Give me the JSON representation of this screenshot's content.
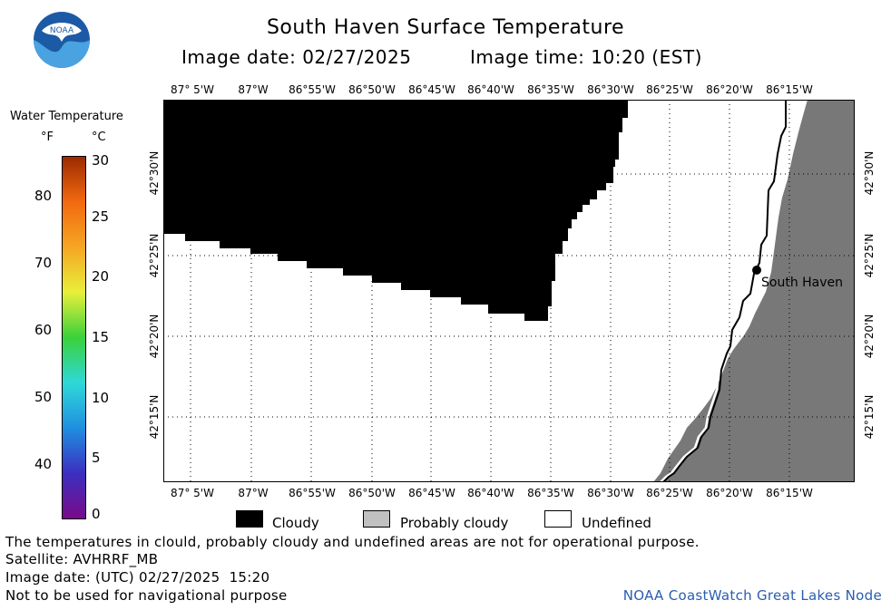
{
  "title": "South Haven Surface Temperature",
  "image_date_label": "Image date: 02/27/2025",
  "image_time_label": "Image time: 10:20 (EST)",
  "logo": {
    "text": "NOAA",
    "icon": "noaa-logo-icon"
  },
  "lon_ticks": [
    "87° 5'W",
    "87°W",
    "86°55'W",
    "86°50'W",
    "86°45'W",
    "86°40'W",
    "86°35'W",
    "86°30'W",
    "86°25'W",
    "86°20'W",
    "86°15'W"
  ],
  "lat_ticks": [
    "42°30'N",
    "42°25'N",
    "42°20'N",
    "42°15'N"
  ],
  "place_label": "South Haven",
  "legend": {
    "title": "Water Temperature",
    "unit_f": "°F",
    "unit_c": "°C",
    "f_ticks": [
      "80",
      "70",
      "60",
      "50",
      "40"
    ],
    "c_ticks": [
      "30",
      "25",
      "20",
      "15",
      "10",
      "5",
      "0"
    ],
    "colors": [
      "#7a0a8a",
      "#3b2fc0",
      "#1f8fe0",
      "#2fd8d8",
      "#3ad13a",
      "#e8ef3a",
      "#f5a623",
      "#f26a10",
      "#9c2a00"
    ]
  },
  "key": {
    "cloudy": "Cloudy",
    "probably_cloudy": "Probably cloudy",
    "undefined": "Undefined",
    "cloudy_color": "#000000",
    "probably_cloudy_color": "#c0c0c0",
    "undefined_color": "#ffffff",
    "land_color": "#787878"
  },
  "footer": {
    "disclaimer": "The temperatures in clould, probably cloudy and undefined areas are not for operational purpose.",
    "satellite": "Satellite: AVHRRF_MB",
    "utc_date": "Image date: (UTC) 02/27/2025  15:20",
    "nav_warning": "Not to be used for navigational purpose",
    "credit": "NOAA CoastWatch Great Lakes Node"
  }
}
